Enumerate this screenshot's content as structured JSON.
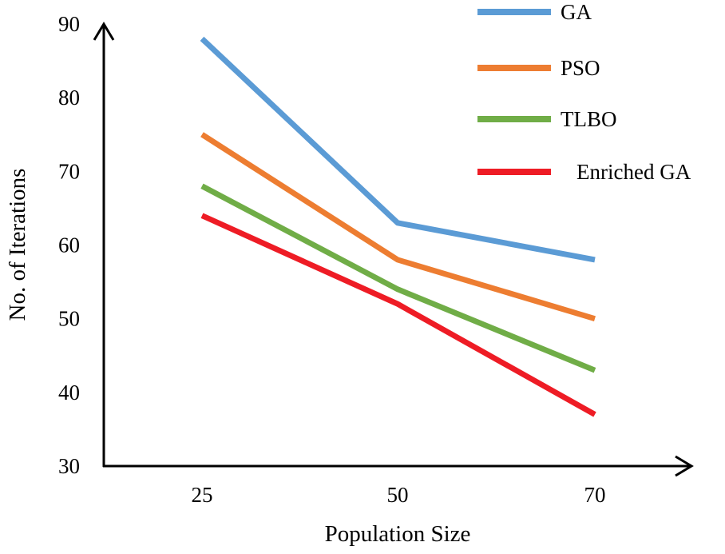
{
  "chart_data": {
    "type": "line",
    "title": "",
    "xlabel": "Population Size",
    "ylabel": "No. of Iterations",
    "categories": [
      "25",
      "50",
      "70"
    ],
    "y_ticks": [
      "30",
      "40",
      "50",
      "60",
      "70",
      "80",
      "90"
    ],
    "ylim": [
      30,
      90
    ],
    "grid": false,
    "legend_position": "top-right",
    "series": [
      {
        "name": "GA",
        "color": "#5b9bd5",
        "values": [
          88,
          63,
          58
        ]
      },
      {
        "name": "PSO",
        "color": "#ed7d31",
        "values": [
          75,
          58,
          50
        ]
      },
      {
        "name": "TLBO",
        "color": "#70ad47",
        "values": [
          68,
          54,
          43
        ]
      },
      {
        "name": "Enriched GA",
        "color": "#ee1c25",
        "values": [
          64,
          52,
          37
        ]
      }
    ]
  }
}
